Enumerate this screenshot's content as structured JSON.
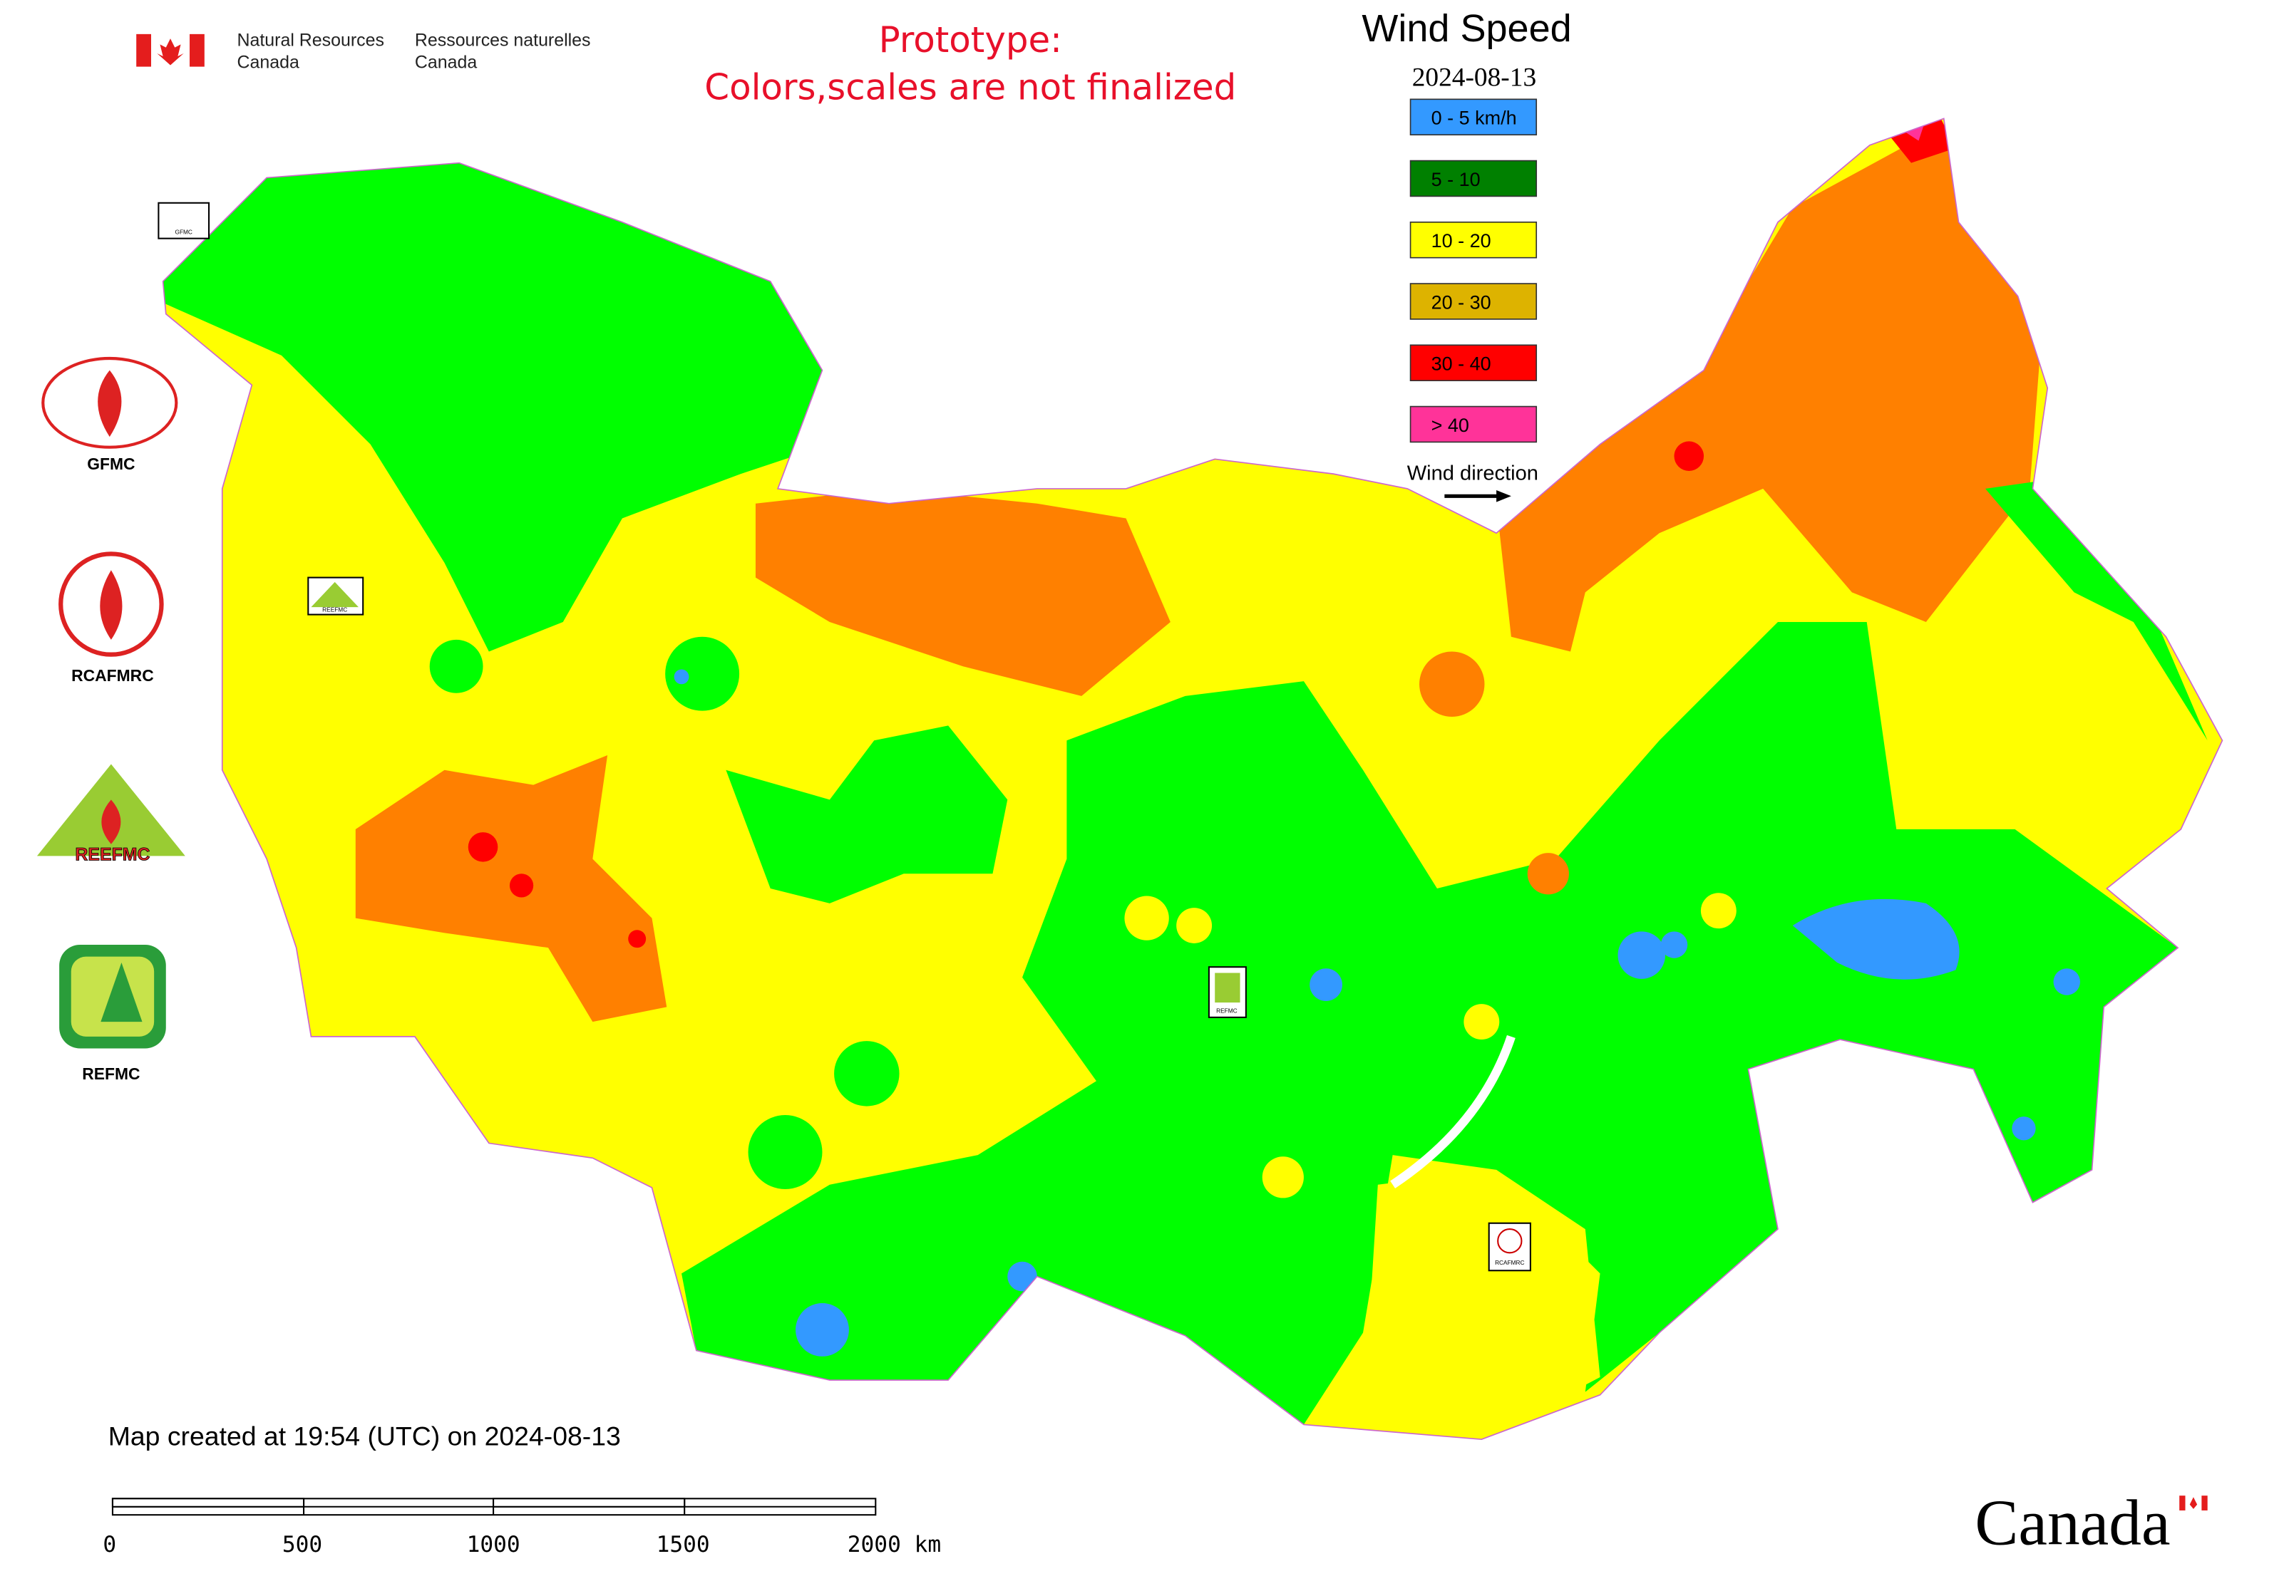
{
  "header": {
    "org_en": [
      "Natural Resources",
      "Canada"
    ],
    "org_fr": [
      "Ressources naturelles",
      "Canada"
    ],
    "notice": [
      "Prototype:",
      "Colors,scales are not finalized"
    ]
  },
  "legend": {
    "title": "Wind Speed",
    "date": "2024-08-13",
    "items": [
      {
        "label": "0 - 5 km/h",
        "color": "#3399ff"
      },
      {
        "label": "5 - 10",
        "color": "#008000"
      },
      {
        "label": "10 - 20",
        "color": "#ffff00"
      },
      {
        "label": "20 - 30",
        "color": "#ddb300"
      },
      {
        "label": "30 - 40",
        "color": "#ff0000"
      },
      {
        "label": "> 40",
        "color": "#ff3399"
      }
    ],
    "wind_direction": "Wind direction"
  },
  "logos": [
    {
      "label": "GFMC"
    },
    {
      "label": "RCAFMRC"
    },
    {
      "label": "REEFMC"
    },
    {
      "label": "REFMC"
    }
  ],
  "map_markers": [
    {
      "label": "GFMC"
    },
    {
      "label": "REEFMC"
    },
    {
      "label": "REFMC"
    },
    {
      "label": "RCAFMRC"
    }
  ],
  "footer": {
    "created": "Map created at 19:54 (UTC) on 2024-08-13",
    "scale_labels": [
      "0",
      "500",
      "1000",
      "1500",
      "2000 km"
    ],
    "wordmark": "Canada"
  }
}
